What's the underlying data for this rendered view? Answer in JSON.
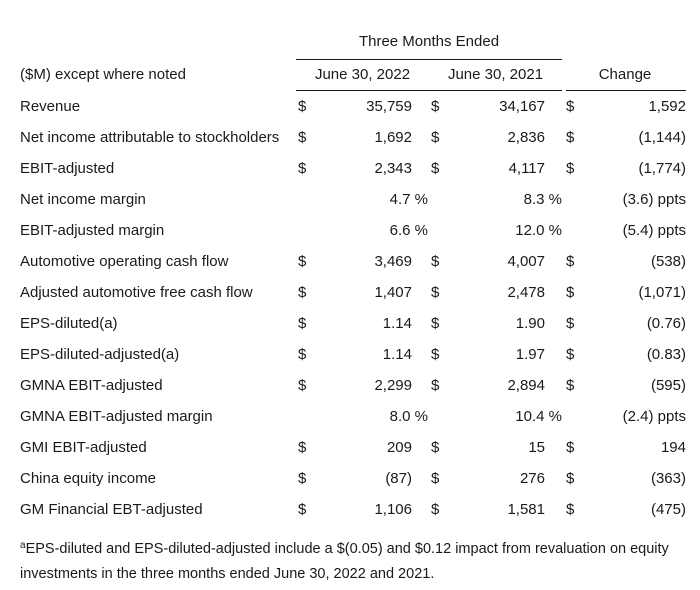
{
  "table": {
    "group_header": "Three Months Ended",
    "header": {
      "label": "($M) except where noted",
      "col1": "June 30, 2022",
      "col2": "June 30, 2021",
      "col3": "Change"
    },
    "rows": [
      {
        "label": "Revenue",
        "d1": "$",
        "v1": "35,759",
        "d2": "$",
        "v2": "34,167",
        "d3": "$",
        "v3": "1,592"
      },
      {
        "label": "Net income attributable to stockholders",
        "d1": "$",
        "v1": "1,692",
        "d2": "$",
        "v2": "2,836",
        "d3": "$",
        "v3": "(1,144)"
      },
      {
        "label": "EBIT-adjusted",
        "d1": "$",
        "v1": "2,343",
        "d2": "$",
        "v2": "4,117",
        "d3": "$",
        "v3": "(1,774)"
      },
      {
        "label": "Net income margin",
        "m1": "4.7 %",
        "m2": "8.3 %",
        "v3": "(3.6) ppts"
      },
      {
        "label": "EBIT-adjusted margin",
        "m1": "6.6 %",
        "m2": "12.0 %",
        "v3": "(5.4) ppts"
      },
      {
        "label": "Automotive operating cash flow",
        "d1": "$",
        "v1": "3,469",
        "d2": "$",
        "v2": "4,007",
        "d3": "$",
        "v3": "(538)"
      },
      {
        "label": "Adjusted automotive free cash flow",
        "d1": "$",
        "v1": "1,407",
        "d2": "$",
        "v2": "2,478",
        "d3": "$",
        "v3": "(1,071)"
      },
      {
        "label": "EPS-diluted(a)",
        "d1": "$",
        "v1": "1.14",
        "d2": "$",
        "v2": "1.90",
        "d3": "$",
        "v3": "(0.76)"
      },
      {
        "label": "EPS-diluted-adjusted(a)",
        "d1": "$",
        "v1": "1.14",
        "d2": "$",
        "v2": "1.97",
        "d3": "$",
        "v3": "(0.83)"
      },
      {
        "label": "GMNA EBIT-adjusted",
        "d1": "$",
        "v1": "2,299",
        "d2": "$",
        "v2": "2,894",
        "d3": "$",
        "v3": "(595)"
      },
      {
        "label": "GMNA EBIT-adjusted margin",
        "m1": "8.0 %",
        "m2": "10.4 %",
        "v3": "(2.4) ppts"
      },
      {
        "label": "GMI EBIT-adjusted",
        "d1": "$",
        "v1": "209",
        "d2": "$",
        "v2": "15",
        "d3": "$",
        "v3": "194"
      },
      {
        "label": "China equity income",
        "d1": "$",
        "v1": "(87)",
        "d2": "$",
        "v2": "276",
        "d3": "$",
        "v3": "(363)"
      },
      {
        "label": "GM Financial EBT-adjusted",
        "d1": "$",
        "v1": "1,106",
        "d2": "$",
        "v2": "1,581",
        "d3": "$",
        "v3": "(475)"
      }
    ]
  },
  "footnote": {
    "marker": "a",
    "text": "EPS-diluted and EPS-diluted-adjusted include a $(0.05) and $0.12 impact from revaluation on equity investments in the three months ended June 30, 2022 and 2021."
  }
}
